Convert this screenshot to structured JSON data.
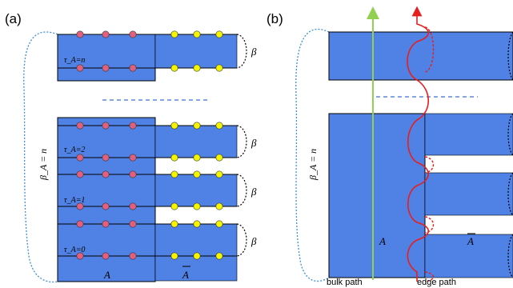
{
  "panel_a": {
    "label": "(a)",
    "tau_n": "τ_A=n",
    "tau_2": "τ_A=2",
    "tau_1": "τ_A=1",
    "tau_0": "τ_A=0",
    "beta_A": "β_A = n",
    "beta": "β",
    "region_A": "A",
    "region_Abar": "A"
  },
  "panel_b": {
    "label": "(b)",
    "beta_A": "β_A = n",
    "region_A": "A",
    "region_Abar": "A",
    "bulk_path": "bulk path",
    "edge_path": "edge path"
  },
  "colors": {
    "slab": "#4f82e4",
    "slab_border": "#000000",
    "site_A": "#e0607e",
    "site_Abar": "#f5f500",
    "dash_blue": "#3c6fd6",
    "bulk_path": "#92d050",
    "edge_path": "#e81e1e"
  }
}
